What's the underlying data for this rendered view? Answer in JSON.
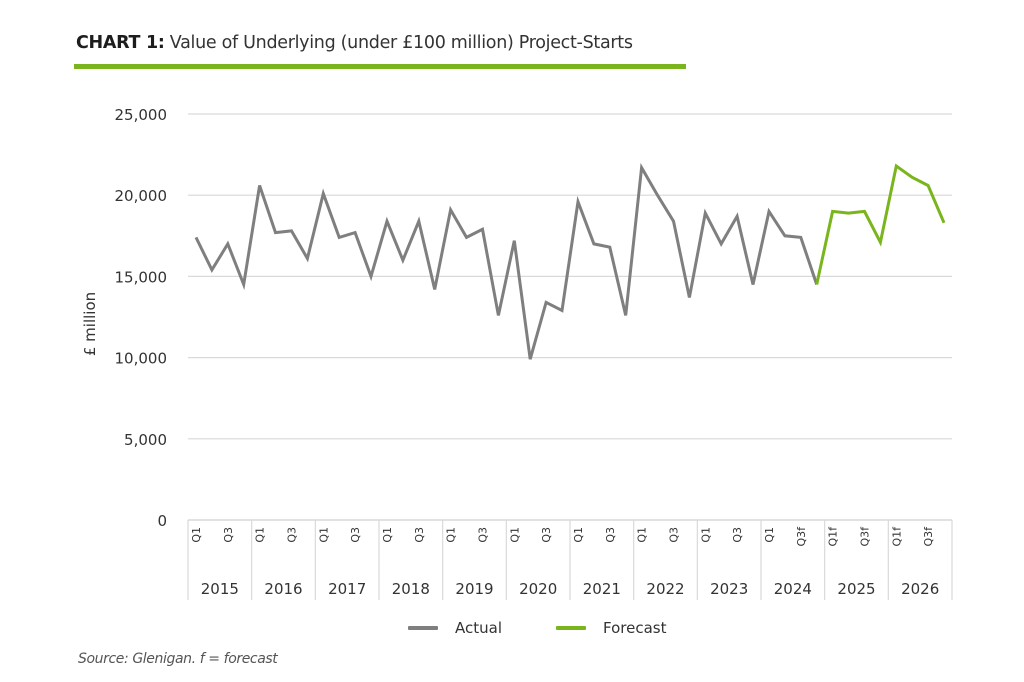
{
  "title_prefix": "CHART 1:",
  "title_text": "Value of Underlying (under £100 million) Project-Starts",
  "source_note": "Source: Glenigan.  f = forecast",
  "colors": {
    "actual": "#7f7f7f",
    "forecast": "#7ab51d",
    "grid": "#d9d9d9",
    "accent": "#7ab51d"
  },
  "legend": [
    {
      "label": "Actual",
      "color": "#7f7f7f"
    },
    {
      "label": "Forecast",
      "color": "#7ab51d"
    }
  ],
  "chart_data": {
    "type": "line",
    "title": "CHART 1: Value of Underlying (under £100 million) Project-Starts",
    "xlabel": "",
    "ylabel": "£ million",
    "ylim": [
      0,
      25000
    ],
    "yticks": [
      0,
      5000,
      10000,
      15000,
      20000,
      25000
    ],
    "ytick_labels": [
      "0",
      "5,000",
      "10,000",
      "15,000",
      "20,000",
      "25,000"
    ],
    "grid": true,
    "legend_position": "bottom",
    "years": [
      "2015",
      "2016",
      "2017",
      "2018",
      "2019",
      "2020",
      "2021",
      "2022",
      "2023",
      "2024",
      "2025",
      "2026"
    ],
    "quarter_tick_labels": [
      [
        "Q1",
        "Q3"
      ],
      [
        "Q1",
        "Q3"
      ],
      [
        "Q1",
        "Q3"
      ],
      [
        "Q1",
        "Q3"
      ],
      [
        "Q1",
        "Q3"
      ],
      [
        "Q1",
        "Q3"
      ],
      [
        "Q1",
        "Q3"
      ],
      [
        "Q1",
        "Q3"
      ],
      [
        "Q1",
        "Q3"
      ],
      [
        "Q1",
        "Q3f"
      ],
      [
        "Q1f",
        "Q3f"
      ],
      [
        "Q1f",
        "Q3f"
      ]
    ],
    "x": [
      "2015 Q1",
      "2015 Q2",
      "2015 Q3",
      "2015 Q4",
      "2016 Q1",
      "2016 Q2",
      "2016 Q3",
      "2016 Q4",
      "2017 Q1",
      "2017 Q2",
      "2017 Q3",
      "2017 Q4",
      "2018 Q1",
      "2018 Q2",
      "2018 Q3",
      "2018 Q4",
      "2019 Q1",
      "2019 Q2",
      "2019 Q3",
      "2019 Q4",
      "2020 Q1",
      "2020 Q2",
      "2020 Q3",
      "2020 Q4",
      "2021 Q1",
      "2021 Q2",
      "2021 Q3",
      "2021 Q4",
      "2022 Q1",
      "2022 Q2",
      "2022 Q3",
      "2022 Q4",
      "2023 Q1",
      "2023 Q2",
      "2023 Q3",
      "2023 Q4",
      "2024 Q1",
      "2024 Q2",
      "2024 Q3f",
      "2024 Q4f",
      "2025 Q1f",
      "2025 Q2f",
      "2025 Q3f",
      "2025 Q4f",
      "2026 Q1f",
      "2026 Q2f",
      "2026 Q3f",
      "2026 Q4f"
    ],
    "series": [
      {
        "name": "Actual",
        "color": "#7f7f7f",
        "start_index": 0,
        "values": [
          17400,
          15400,
          17000,
          14500,
          20600,
          17700,
          17800,
          16100,
          20100,
          17400,
          17700,
          15000,
          18400,
          16000,
          18400,
          14200,
          19100,
          17400,
          17900,
          12600,
          17200,
          9900,
          13400,
          12900,
          19600,
          17000,
          16800,
          12600,
          21700,
          20000,
          18400,
          13700,
          18900,
          17000,
          18700,
          14500,
          19000,
          17500,
          17400,
          14500
        ]
      },
      {
        "name": "Forecast",
        "color": "#7ab51d",
        "start_index": 39,
        "values": [
          14500,
          19000,
          18900,
          19000,
          17100,
          21800,
          21100,
          20600,
          18300
        ]
      }
    ]
  }
}
